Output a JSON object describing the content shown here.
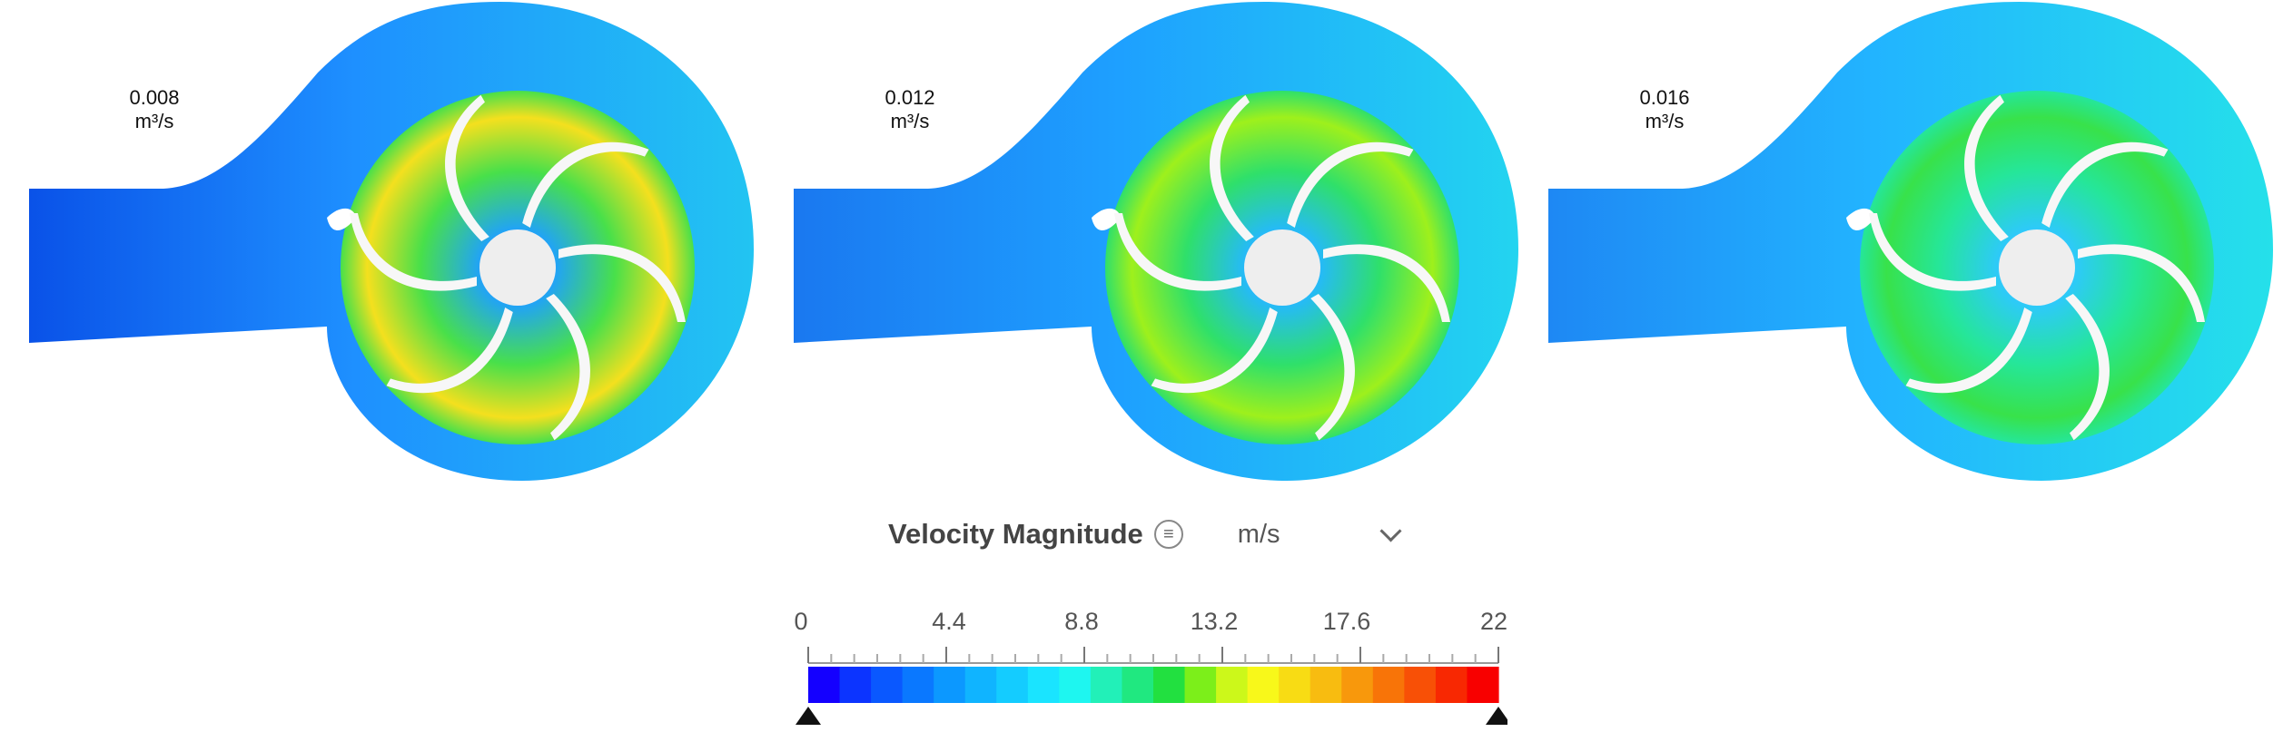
{
  "panels": [
    {
      "flow_value": "0.008",
      "flow_unit": "m³/s"
    },
    {
      "flow_value": "0.012",
      "flow_unit": "m³/s"
    },
    {
      "flow_value": "0.016",
      "flow_unit": "m³/s"
    }
  ],
  "legend": {
    "title": "Velocity Magnitude",
    "unit": "m/s",
    "ticks": [
      "0",
      "4.4",
      "8.8",
      "13.2",
      "17.6",
      "22"
    ],
    "min": 0,
    "max": 22,
    "colors": [
      "#1400ff",
      "#0c34ff",
      "#0a58ff",
      "#0a78ff",
      "#0c98ff",
      "#10b4ff",
      "#14ccff",
      "#1ae4ff",
      "#1ef6f0",
      "#22f0b8",
      "#20e880",
      "#22e040",
      "#7cef1a",
      "#ccf81a",
      "#f8f81a",
      "#f8dc14",
      "#f8bc10",
      "#f8980c",
      "#f87408",
      "#f85006",
      "#f82802",
      "#f80000"
    ]
  },
  "colors": {
    "volute_low": "#1a8cff",
    "volute_mid": "#25d7f5",
    "impeller_high": "#f2e621",
    "impeller_mid": "#42e04a",
    "blade": "#f7f7f7",
    "hub": "#eeeeee"
  }
}
